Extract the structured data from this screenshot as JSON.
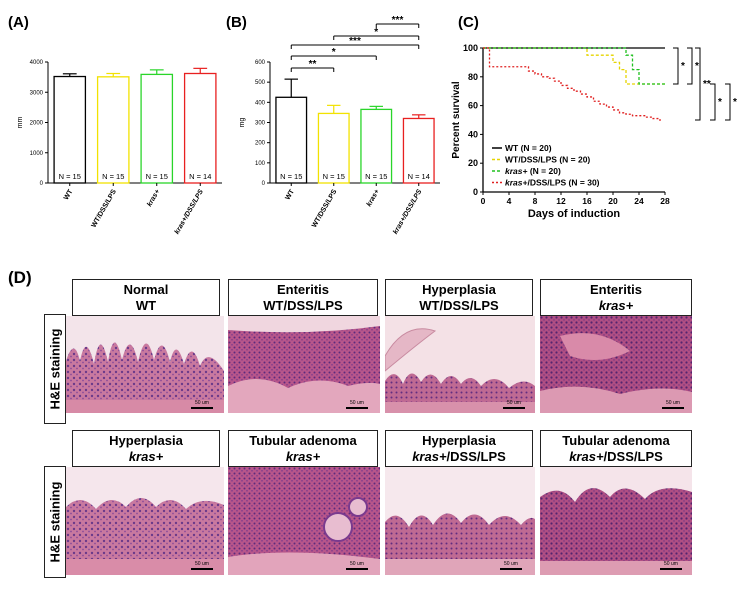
{
  "panels": {
    "A": "(A)",
    "B": "(B)",
    "C": "(C)",
    "D": "(D)"
  },
  "chart_data": [
    {
      "type": "bar",
      "ylabel": "mm",
      "ylim": [
        0,
        4000
      ],
      "yticks": [
        0,
        1000,
        2000,
        3000,
        4000
      ],
      "categories": [
        "WT",
        "WT/DSS/LPS",
        "kras+",
        "kras+/DSS/LPS"
      ],
      "values": [
        3520,
        3510,
        3590,
        3620
      ],
      "errors": [
        90,
        110,
        150,
        170
      ],
      "n_labels": [
        "N = 15",
        "N = 15",
        "N = 15",
        "N = 14"
      ],
      "colors": [
        "#000000",
        "#f2e200",
        "#2ad52a",
        "#e82020"
      ]
    },
    {
      "type": "bar",
      "ylabel": "mg",
      "ylim": [
        0,
        600
      ],
      "yticks": [
        0,
        100,
        200,
        300,
        400,
        500,
        600
      ],
      "categories": [
        "WT",
        "WT/DSS/LPS",
        "kras+",
        "kras+/DSS/LPS"
      ],
      "values": [
        425,
        345,
        365,
        320
      ],
      "errors": [
        90,
        40,
        15,
        18
      ],
      "n_labels": [
        "N = 15",
        "N = 15",
        "N = 15",
        "N = 14"
      ],
      "colors": [
        "#000000",
        "#f2e200",
        "#2ad52a",
        "#e82020"
      ],
      "significance": [
        {
          "from": 2,
          "to": 3,
          "label": "***"
        },
        {
          "from": 1,
          "to": 3,
          "label": "*"
        },
        {
          "from": 0,
          "to": 3,
          "label": "***"
        },
        {
          "from": 0,
          "to": 2,
          "label": "*"
        },
        {
          "from": 0,
          "to": 1,
          "label": "**"
        }
      ]
    },
    {
      "type": "line",
      "xlabel": "Days of induction",
      "ylabel": "Percent survival",
      "xlim": [
        0,
        28
      ],
      "ylim": [
        0,
        100
      ],
      "xticks": [
        0,
        4,
        8,
        12,
        16,
        20,
        24,
        28
      ],
      "yticks": [
        0,
        20,
        40,
        60,
        80,
        100
      ],
      "series": [
        {
          "name": "WT (N = 20)",
          "color": "#000000",
          "dash": "",
          "x": [
            0,
            28
          ],
          "y": [
            100,
            100
          ]
        },
        {
          "name": "WT/DSS/LPS (N = 20)",
          "color": "#e6d400",
          "dash": "3,2",
          "x": [
            0,
            16,
            20,
            21,
            22,
            28
          ],
          "y": [
            100,
            95,
            90,
            85,
            75,
            75
          ]
        },
        {
          "name": "kras+ (N = 20)",
          "color": "#20c020",
          "dash": "3,2",
          "x": [
            0,
            22,
            23,
            24,
            28
          ],
          "y": [
            100,
            95,
            85,
            75,
            75
          ]
        },
        {
          "name": "kras+/DSS/LPS (N = 30)",
          "color": "#e02020",
          "dash": "2,2",
          "x": [
            0,
            1,
            6,
            7,
            8,
            9,
            10,
            11,
            12,
            13,
            14,
            15,
            16,
            17,
            18,
            19,
            20,
            21,
            22,
            23,
            24,
            25,
            26,
            27
          ],
          "y": [
            100,
            87,
            87,
            84,
            82,
            80,
            79,
            77,
            74,
            72,
            70,
            68,
            66,
            63,
            61,
            59,
            57,
            55,
            54,
            53,
            53,
            52,
            51,
            50
          ]
        }
      ],
      "legend_labels": [
        {
          "main": "WT",
          "rest": " (N = 20)",
          "italic": false
        },
        {
          "main": "WT/DSS/LPS",
          "rest": " (N = 20)",
          "italic": false
        },
        {
          "main": "kras+",
          "rest": " (N = 20)",
          "italic": true
        },
        {
          "main": "kras+",
          "rest": "/DSS/LPS (N = 30)",
          "italic": true
        }
      ],
      "significance": [
        "*",
        "*",
        "**",
        "*",
        "*"
      ]
    }
  ],
  "histology": {
    "side_label": "H&E staining",
    "scalebar": "50 um",
    "row1": [
      {
        "line1": "Normal",
        "line2": "WT",
        "italic2": false
      },
      {
        "line1": "Enteritis",
        "line2": "WT/DSS/LPS",
        "italic2": false
      },
      {
        "line1": "Hyperplasia",
        "line2": "WT/DSS/LPS",
        "italic2": false
      },
      {
        "line1": "Enteritis",
        "line2": "kras+",
        "italic2": true
      }
    ],
    "row2": [
      {
        "line1": "Hyperplasia",
        "line2": "kras+",
        "italic2": true
      },
      {
        "line1": "Tubular adenoma",
        "line2": "kras+",
        "italic2": true
      },
      {
        "line1": "Hyperplasia",
        "line2a": "kras+",
        "line2b": "/DSS/LPS",
        "italic2": true
      },
      {
        "line1": "Tubular adenoma",
        "line2a": "kras+",
        "line2b": "/DSS/LPS",
        "italic2": true
      }
    ]
  }
}
